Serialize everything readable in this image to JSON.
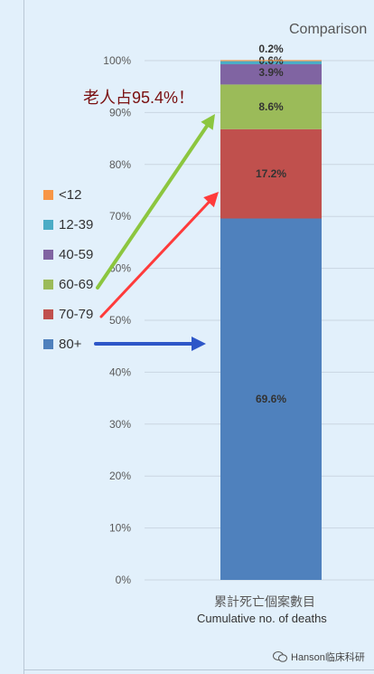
{
  "title": "Comparison",
  "annotation": "老人占95.4%！",
  "watermark": "Hanson临床科研",
  "chart_data": {
    "type": "bar",
    "stacked": true,
    "categories": [
      "累計死亡個案數目 Cumulative no. of deaths"
    ],
    "category_label_line1": "累計死亡個案數目",
    "category_label_line2": "Cumulative no. of deaths",
    "ylim": [
      0,
      100
    ],
    "yticks": [
      "0%",
      "10%",
      "20%",
      "30%",
      "40%",
      "50%",
      "60%",
      "70%",
      "80%",
      "90%",
      "100%"
    ],
    "grid": true,
    "legend_position": "left",
    "series": [
      {
        "name": "80+",
        "values": [
          69.6
        ],
        "label": "69.6%",
        "color": "#4f81bd"
      },
      {
        "name": "70-79",
        "values": [
          17.2
        ],
        "label": "17.2%",
        "color": "#c0504d"
      },
      {
        "name": "60-69",
        "values": [
          8.6
        ],
        "label": "8.6%",
        "color": "#9bbb59"
      },
      {
        "name": "40-59",
        "values": [
          3.9
        ],
        "label": "3.9%",
        "color": "#8064a2"
      },
      {
        "name": "12-39",
        "values": [
          0.6
        ],
        "label": "0.6%",
        "color": "#4bacc6"
      },
      {
        "name": "<12",
        "values": [
          0.2
        ],
        "label": "0.2%",
        "color": "#f79646"
      }
    ]
  }
}
